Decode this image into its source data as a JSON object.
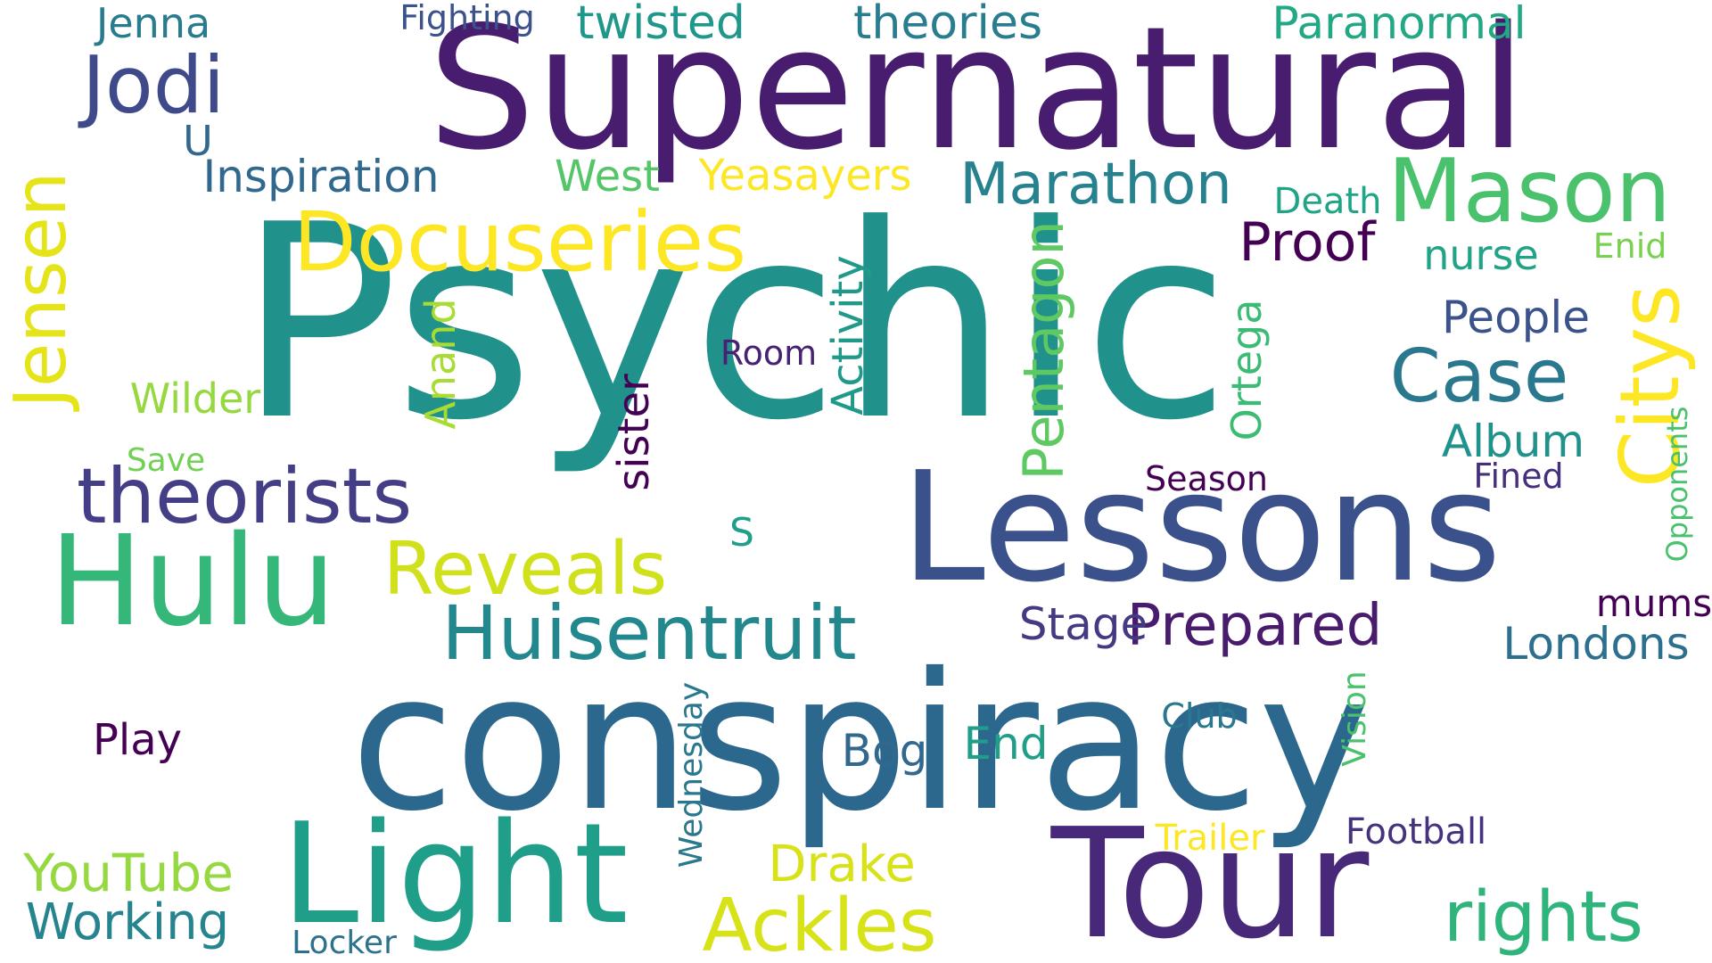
{
  "words": [
    {
      "id": "psychic",
      "text": "Psychic",
      "color": "#21918c"
    },
    {
      "id": "conspiracy",
      "text": "conspiracy",
      "color": "#2c688e"
    },
    {
      "id": "supernatural",
      "text": "Supernatural",
      "color": "#481d6f"
    },
    {
      "id": "lessons",
      "text": "Lessons",
      "color": "#3b518b"
    },
    {
      "id": "tour",
      "text": "Tour",
      "color": "#482878"
    },
    {
      "id": "light",
      "text": "Light",
      "color": "#1f9e89"
    },
    {
      "id": "hulu",
      "text": "Hulu",
      "color": "#35b779"
    },
    {
      "id": "mason",
      "text": "Mason",
      "color": "#4ac16d"
    },
    {
      "id": "docuseries",
      "text": "Docuseries",
      "color": "#fde725"
    },
    {
      "id": "jodi",
      "text": "Jodi",
      "color": "#3e4a89"
    },
    {
      "id": "theorists",
      "text": "theorists",
      "color": "#433e85"
    },
    {
      "id": "reveals",
      "text": "Reveals",
      "color": "#d0e11c"
    },
    {
      "id": "huisentruit",
      "text": "Huisentruit",
      "color": "#23888e"
    },
    {
      "id": "ackles",
      "text": "Ackles",
      "color": "#d8e219"
    },
    {
      "id": "rights",
      "text": "rights",
      "color": "#2fb47c"
    },
    {
      "id": "citys",
      "text": "Citys",
      "color": "#fde725"
    },
    {
      "id": "case",
      "text": "Case",
      "color": "#2a788e"
    },
    {
      "id": "jensen",
      "text": "Jensen",
      "color": "#e5e419"
    },
    {
      "id": "marathon",
      "text": "Marathon",
      "color": "#26828e"
    },
    {
      "id": "prepared",
      "text": "Prepared",
      "color": "#481b6d"
    },
    {
      "id": "proof",
      "text": "Proof",
      "color": "#440154"
    },
    {
      "id": "pentagon",
      "text": "Pentagon",
      "color": "#5ec962"
    },
    {
      "id": "twisted",
      "text": "twisted",
      "color": "#1f988b"
    },
    {
      "id": "theories",
      "text": "theories",
      "color": "#287d8e"
    },
    {
      "id": "paranormal",
      "text": "Paranormal",
      "color": "#22a884"
    },
    {
      "id": "inspiration",
      "text": "Inspiration",
      "color": "#31688e"
    },
    {
      "id": "yeasayers",
      "text": "Yeasayers",
      "color": "#fde725"
    },
    {
      "id": "west",
      "text": "West",
      "color": "#54c568"
    },
    {
      "id": "youtube",
      "text": "YouTube",
      "color": "#95d840"
    },
    {
      "id": "working",
      "text": "Working",
      "color": "#25848e"
    },
    {
      "id": "drake",
      "text": "Drake",
      "color": "#d8e219"
    },
    {
      "id": "londons",
      "text": "Londons",
      "color": "#2d708e"
    },
    {
      "id": "people",
      "text": "People",
      "color": "#3b528b"
    },
    {
      "id": "album",
      "text": "Album",
      "color": "#21918c"
    },
    {
      "id": "stage",
      "text": "Stage",
      "color": "#443983"
    },
    {
      "id": "activity",
      "text": "Activity",
      "color": "#1f9a8a"
    },
    {
      "id": "ortega",
      "text": "Ortega",
      "color": "#3cbb75"
    },
    {
      "id": "sister",
      "text": "sister",
      "color": "#440154"
    },
    {
      "id": "jenna",
      "text": "Jenna",
      "color": "#287c8e"
    },
    {
      "id": "nurse",
      "text": "nurse",
      "color": "#20a386"
    },
    {
      "id": "wilder",
      "text": "Wilder",
      "color": "#95d840"
    },
    {
      "id": "anand",
      "text": "Anand",
      "color": "#a8db34"
    },
    {
      "id": "play",
      "text": "Play",
      "color": "#440154"
    },
    {
      "id": "bog",
      "text": "Bog",
      "color": "#31688e"
    },
    {
      "id": "end",
      "text": "End",
      "color": "#1f9e89"
    },
    {
      "id": "mums",
      "text": "mums",
      "color": "#440154"
    },
    {
      "id": "death",
      "text": "Death",
      "color": "#20a486"
    },
    {
      "id": "enid",
      "text": "Enid",
      "color": "#7ad151"
    },
    {
      "id": "opponents",
      "text": "Opponents",
      "color": "#4ac16d"
    },
    {
      "id": "wednesday",
      "text": "Wednesday",
      "color": "#2a788e"
    },
    {
      "id": "football",
      "text": "Football",
      "color": "#46337e"
    },
    {
      "id": "trailer",
      "text": "Trailer",
      "color": "#fde725"
    },
    {
      "id": "vision",
      "text": "Vision",
      "color": "#4ac16d"
    },
    {
      "id": "locker",
      "text": "Locker",
      "color": "#2c728e"
    },
    {
      "id": "season",
      "text": "Season",
      "color": "#440154"
    },
    {
      "id": "fined",
      "text": "Fined",
      "color": "#46307e"
    },
    {
      "id": "club",
      "text": "Club",
      "color": "#2a788e"
    },
    {
      "id": "room",
      "text": "Room",
      "color": "#482173"
    },
    {
      "id": "fighting",
      "text": "Fighting",
      "color": "#3b528b"
    },
    {
      "id": "save",
      "text": "Save",
      "color": "#73d056"
    },
    {
      "id": "u",
      "text": "U",
      "color": "#31688e"
    },
    {
      "id": "s",
      "text": "S",
      "color": "#1f9e89"
    }
  ]
}
